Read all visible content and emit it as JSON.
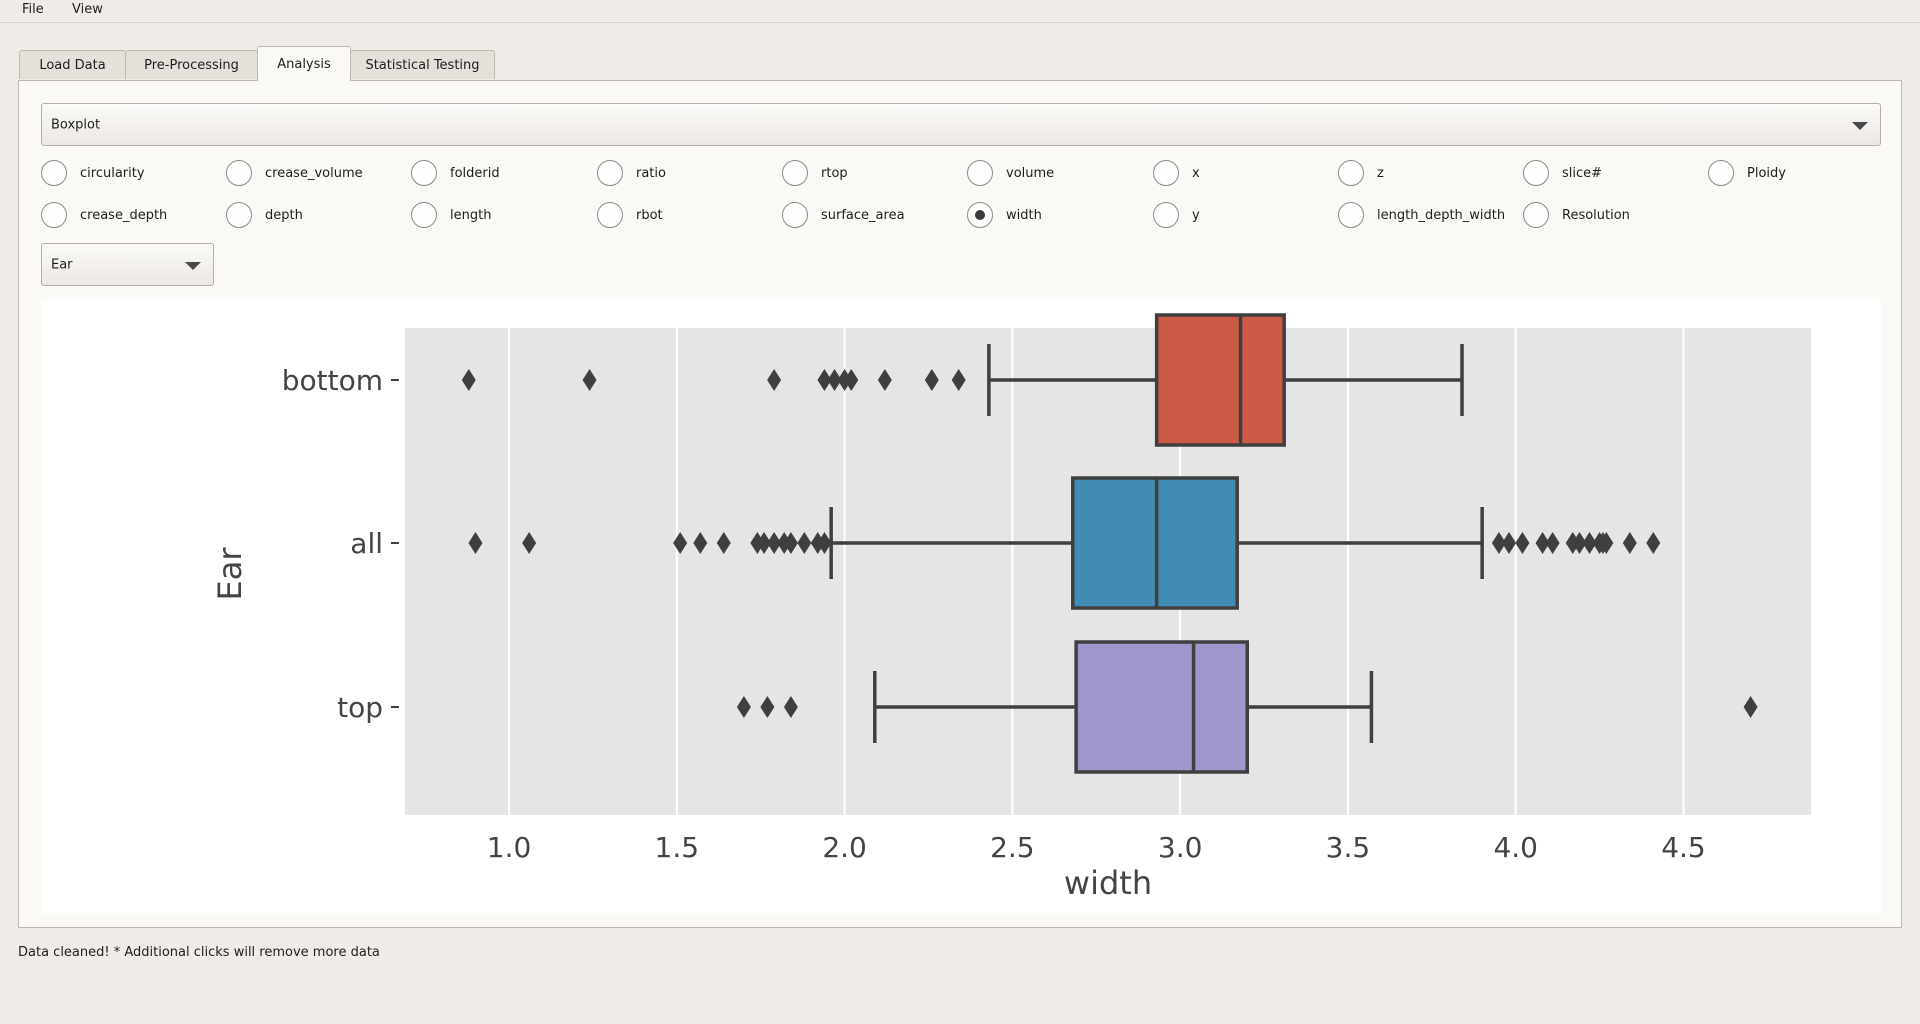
{
  "menu": [
    "File",
    "View"
  ],
  "tabs": [
    {
      "label": "Load Data",
      "active": false
    },
    {
      "label": "Pre-Processing",
      "active": false
    },
    {
      "label": "Analysis",
      "active": true
    },
    {
      "label": "Statistical Testing",
      "active": false
    }
  ],
  "plot_type": {
    "selected": "Boxplot"
  },
  "variables": [
    {
      "label": "circularity",
      "checked": false
    },
    {
      "label": "crease_volume",
      "checked": false
    },
    {
      "label": "folderid",
      "checked": false
    },
    {
      "label": "ratio",
      "checked": false
    },
    {
      "label": "rtop",
      "checked": false
    },
    {
      "label": "volume",
      "checked": false
    },
    {
      "label": "x",
      "checked": false
    },
    {
      "label": "z",
      "checked": false
    },
    {
      "label": "slice#",
      "checked": false
    },
    {
      "label": "Ploidy",
      "checked": false
    },
    {
      "label": "crease_depth",
      "checked": false
    },
    {
      "label": "depth",
      "checked": false
    },
    {
      "label": "length",
      "checked": false
    },
    {
      "label": "rbot",
      "checked": false
    },
    {
      "label": "surface_area",
      "checked": false
    },
    {
      "label": "width",
      "checked": true
    },
    {
      "label": "y",
      "checked": false
    },
    {
      "label": "length_depth_width",
      "checked": false
    },
    {
      "label": "Resolution",
      "checked": false
    }
  ],
  "group_by": {
    "selected": "Ear"
  },
  "status_text": "Data cleaned! * Additional clicks will remove more data",
  "chart_data": {
    "type": "boxplot",
    "orientation": "horizontal",
    "xlabel": "width",
    "ylabel": "Ear",
    "xlim": [
      0.69,
      4.88
    ],
    "xticks": [
      "1.0",
      "1.5",
      "2.0",
      "2.5",
      "3.0",
      "3.5",
      "4.0",
      "4.5"
    ],
    "grid": "vertical",
    "categories": [
      "bottom",
      "all",
      "top"
    ],
    "colors": [
      "#cc5a47",
      "#428bb4",
      "#9d97cc"
    ],
    "boxes": [
      {
        "category": "bottom",
        "whisker_low": 2.43,
        "q1": 2.93,
        "median": 3.18,
        "q3": 3.31,
        "whisker_high": 3.84,
        "outliers": [
          0.88,
          1.24,
          1.79,
          1.94,
          1.97,
          2.0,
          2.02,
          2.12,
          2.26,
          2.34
        ]
      },
      {
        "category": "all",
        "whisker_low": 1.96,
        "q1": 2.68,
        "median": 2.93,
        "q3": 3.17,
        "whisker_high": 3.9,
        "outliers": [
          0.9,
          1.06,
          1.51,
          1.57,
          1.64,
          1.74,
          1.76,
          1.79,
          1.82,
          1.84,
          1.88,
          1.92,
          1.94,
          3.95,
          3.98,
          4.02,
          4.08,
          4.11,
          4.17,
          4.19,
          4.22,
          4.25,
          4.26,
          4.27,
          4.34,
          4.41
        ]
      },
      {
        "category": "top",
        "whisker_low": 2.09,
        "q1": 2.69,
        "median": 3.04,
        "q3": 3.2,
        "whisker_high": 3.57,
        "outliers": [
          1.7,
          1.77,
          1.84,
          4.7
        ]
      }
    ]
  }
}
